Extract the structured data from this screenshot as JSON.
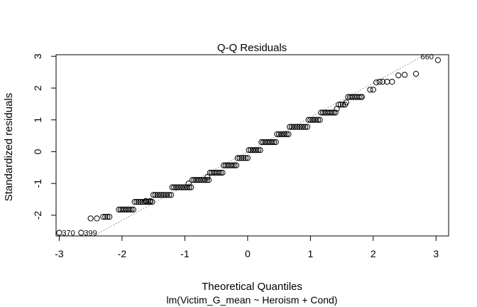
{
  "chart_data": {
    "type": "scatter",
    "title": "Q-Q Residuals",
    "xlabel": "Theoretical Quantiles",
    "ylabel": "Standardized residuals",
    "subtitle": "lm(Victim_G_mean ~ Heroism + Cond)",
    "xlim": [
      -3.05,
      3.2
    ],
    "ylim": [
      -2.65,
      3.05
    ],
    "x_ticks": [
      -3,
      -2,
      -1,
      0,
      1,
      2,
      3
    ],
    "x_tick_labels": [
      "-3",
      "-2",
      "-1",
      "0",
      "1",
      "2",
      "3"
    ],
    "y_ticks": [
      -2,
      -1,
      0,
      1,
      2,
      3
    ],
    "y_tick_labels": [
      "-2",
      "-1",
      "0",
      "1",
      "2",
      "3"
    ],
    "reference_line": {
      "style": "dotted",
      "color": "#808080",
      "slope": 1.08,
      "intercept": 0.0
    },
    "levels": [
      {
        "x_start": -2.3,
        "x_end": -2.2,
        "y": -2.05
      },
      {
        "x_start": -2.05,
        "x_end": -1.82,
        "y": -1.82
      },
      {
        "x_start": -1.8,
        "x_end": -1.52,
        "y": -1.58
      },
      {
        "x_start": -1.5,
        "x_end": -1.22,
        "y": -1.36
      },
      {
        "x_start": -1.2,
        "x_end": -0.9,
        "y": -1.12
      },
      {
        "x_start": -0.88,
        "x_end": -0.62,
        "y": -0.89
      },
      {
        "x_start": -0.6,
        "x_end": -0.4,
        "y": -0.66
      },
      {
        "x_start": -0.38,
        "x_end": -0.18,
        "y": -0.43
      },
      {
        "x_start": -0.16,
        "x_end": 0.0,
        "y": -0.2
      },
      {
        "x_start": 0.02,
        "x_end": 0.2,
        "y": 0.05
      },
      {
        "x_start": 0.22,
        "x_end": 0.45,
        "y": 0.3
      },
      {
        "x_start": 0.47,
        "x_end": 0.65,
        "y": 0.55
      },
      {
        "x_start": 0.67,
        "x_end": 0.95,
        "y": 0.78
      },
      {
        "x_start": 0.97,
        "x_end": 1.15,
        "y": 1.0
      },
      {
        "x_start": 1.17,
        "x_end": 1.4,
        "y": 1.23
      },
      {
        "x_start": 1.45,
        "x_end": 1.55,
        "y": 1.48
      },
      {
        "x_start": 1.6,
        "x_end": 1.8,
        "y": 1.72
      }
    ],
    "points": [
      {
        "x": -3.0,
        "y": -2.55,
        "label": "370"
      },
      {
        "x": -2.65,
        "y": -2.55,
        "label": "399"
      },
      {
        "x": -2.5,
        "y": -2.1
      },
      {
        "x": -2.4,
        "y": -2.1
      },
      {
        "x": -1.62,
        "y": -1.55
      },
      {
        "x": -1.55,
        "y": -1.55
      },
      {
        "x": -0.94,
        "y": -1.0
      },
      {
        "x": -0.64,
        "y": -0.8
      },
      {
        "x": 1.42,
        "y": 1.35
      },
      {
        "x": 1.57,
        "y": 1.55
      },
      {
        "x": 1.82,
        "y": 1.72
      },
      {
        "x": 1.95,
        "y": 1.95
      },
      {
        "x": 2.0,
        "y": 1.95
      },
      {
        "x": 2.05,
        "y": 2.18
      },
      {
        "x": 2.1,
        "y": 2.2
      },
      {
        "x": 2.15,
        "y": 2.2
      },
      {
        "x": 2.22,
        "y": 2.2
      },
      {
        "x": 2.3,
        "y": 2.2
      },
      {
        "x": 2.4,
        "y": 2.4
      },
      {
        "x": 2.5,
        "y": 2.42
      },
      {
        "x": 2.68,
        "y": 2.45
      },
      {
        "x": 3.03,
        "y": 2.88,
        "label": "660"
      }
    ]
  }
}
